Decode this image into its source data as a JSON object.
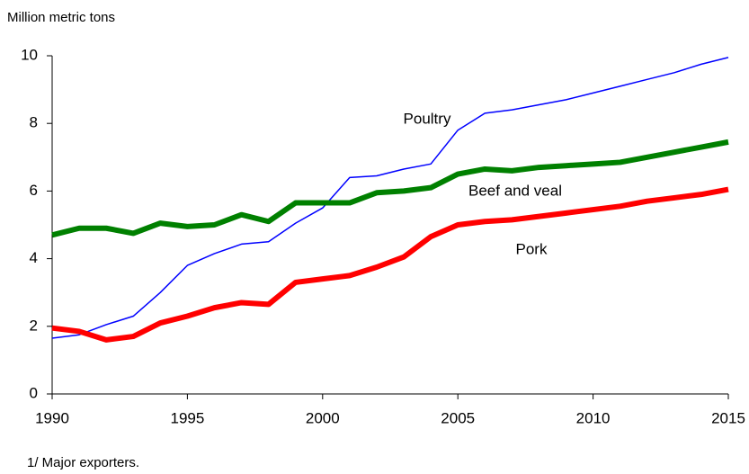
{
  "chart_data": {
    "type": "line",
    "y_axis_label": "Million metric tons",
    "footnote": "1/ Major exporters.",
    "x": [
      1990,
      1991,
      1992,
      1993,
      1994,
      1995,
      1996,
      1997,
      1998,
      1999,
      2000,
      2001,
      2002,
      2003,
      2004,
      2005,
      2006,
      2007,
      2008,
      2009,
      2010,
      2011,
      2012,
      2013,
      2014,
      2015
    ],
    "series": [
      {
        "name": "Poultry",
        "color": "#0000ff",
        "width": 1.5,
        "values": [
          1.65,
          1.75,
          2.05,
          2.3,
          3.0,
          3.8,
          4.15,
          4.43,
          4.5,
          5.05,
          5.5,
          6.4,
          6.45,
          6.65,
          6.8,
          7.8,
          8.3,
          8.4,
          8.55,
          8.7,
          8.9,
          9.1,
          9.3,
          9.5,
          9.75,
          9.95
        ]
      },
      {
        "name": "Beef and veal",
        "color": "#008000",
        "width": 6,
        "values": [
          4.7,
          4.9,
          4.9,
          4.75,
          5.05,
          4.95,
          5.0,
          5.3,
          5.1,
          5.65,
          5.65,
          5.65,
          5.95,
          6.0,
          6.1,
          6.5,
          6.65,
          6.6,
          6.7,
          6.75,
          6.8,
          6.85,
          7.0,
          7.15,
          7.3,
          7.45
        ]
      },
      {
        "name": "Pork",
        "color": "#ff0000",
        "width": 6,
        "values": [
          1.95,
          1.85,
          1.6,
          1.7,
          2.1,
          2.3,
          2.55,
          2.7,
          2.65,
          3.3,
          3.4,
          3.5,
          3.75,
          4.05,
          4.65,
          5.0,
          5.1,
          5.15,
          5.25,
          5.35,
          5.45,
          5.55,
          5.7,
          5.8,
          5.9,
          6.05
        ]
      }
    ],
    "xlim": [
      1990,
      2015
    ],
    "xticks": [
      1990,
      1995,
      2000,
      2005,
      2010,
      2015
    ],
    "ylim": [
      0,
      10
    ],
    "yticks": [
      0,
      2,
      4,
      6,
      8,
      10
    ]
  }
}
